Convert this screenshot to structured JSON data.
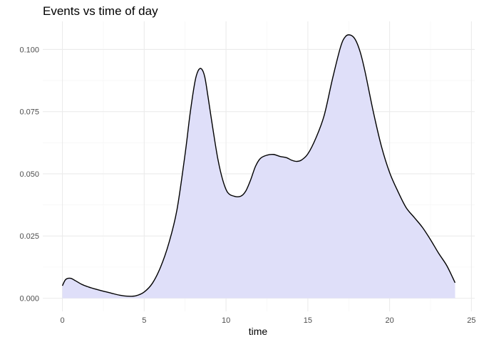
{
  "chart_data": {
    "type": "area",
    "title": "Events vs time of day",
    "xlabel": "time",
    "ylabel": "",
    "xlim": [
      -1.2,
      25.2
    ],
    "ylim": [
      -0.0053,
      0.1113
    ],
    "x_ticks": [
      0,
      5,
      10,
      15,
      20,
      25
    ],
    "x_tick_labels": [
      "0",
      "5",
      "10",
      "15",
      "20",
      "25"
    ],
    "y_ticks": [
      0.0,
      0.025,
      0.05,
      0.075,
      0.1
    ],
    "y_tick_labels": [
      "0.000",
      "0.025",
      "0.050",
      "0.075",
      "0.100"
    ],
    "grid": true,
    "fill_color": "#dfdff9",
    "line_color": "#000000",
    "series": [
      {
        "x": [
          0,
          0.2,
          0.5,
          0.8,
          1.2,
          1.6,
          2.0,
          2.5,
          3.0,
          3.5,
          4.0,
          4.5,
          5.0,
          5.5,
          6.0,
          6.5,
          7.0,
          7.5,
          7.8,
          8.1,
          8.3,
          8.5,
          8.7,
          8.9,
          9.2,
          9.5,
          9.8,
          10.1,
          10.5,
          10.9,
          11.2,
          11.5,
          11.8,
          12.1,
          12.5,
          12.9,
          13.3,
          13.7,
          14.0,
          14.3,
          14.6,
          15.0,
          15.5,
          16.0,
          16.5,
          17.0,
          17.3,
          17.6,
          17.9,
          18.2,
          18.5,
          19.0,
          19.5,
          20.0,
          20.5,
          21.0,
          21.5,
          22.0,
          22.5,
          23.0,
          23.5,
          24.0
        ],
        "y": [
          0.005,
          0.0075,
          0.008,
          0.007,
          0.0055,
          0.0045,
          0.0037,
          0.0028,
          0.002,
          0.0012,
          0.0008,
          0.001,
          0.0025,
          0.006,
          0.0125,
          0.022,
          0.0355,
          0.058,
          0.074,
          0.087,
          0.0915,
          0.0922,
          0.089,
          0.081,
          0.068,
          0.056,
          0.0475,
          0.0425,
          0.041,
          0.041,
          0.043,
          0.0475,
          0.053,
          0.0562,
          0.0575,
          0.0578,
          0.057,
          0.0565,
          0.0555,
          0.055,
          0.0555,
          0.058,
          0.0645,
          0.0735,
          0.088,
          0.101,
          0.1052,
          0.1058,
          0.104,
          0.099,
          0.091,
          0.075,
          0.061,
          0.0505,
          0.043,
          0.0365,
          0.0325,
          0.0285,
          0.0235,
          0.018,
          0.013,
          0.0062
        ]
      }
    ]
  }
}
